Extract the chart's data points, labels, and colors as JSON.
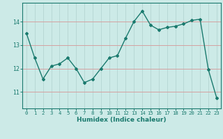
{
  "xlabel": "Humidex (Indice chaleur)",
  "x": [
    0,
    1,
    2,
    3,
    4,
    5,
    6,
    7,
    8,
    9,
    10,
    11,
    12,
    13,
    14,
    15,
    16,
    17,
    18,
    19,
    20,
    21,
    22,
    23
  ],
  "y": [
    13.5,
    12.45,
    11.55,
    12.1,
    12.2,
    12.45,
    12.0,
    11.4,
    11.55,
    12.0,
    12.45,
    12.55,
    13.3,
    14.0,
    14.45,
    13.85,
    13.65,
    13.75,
    13.8,
    13.9,
    14.05,
    14.1,
    11.95,
    10.75
  ],
  "line_color": "#1a7a6e",
  "bg_color": "#cceae7",
  "grid_color": "#b8d8d5",
  "tick_color": "#1a7a6e",
  "label_color": "#1a7a6e",
  "yticks": [
    11,
    12,
    13,
    14
  ],
  "ylim": [
    10.3,
    14.8
  ],
  "xlim": [
    -0.5,
    23.5
  ],
  "marker": "D",
  "markersize": 2.0,
  "linewidth": 1.0,
  "tick_fontsize": 5.2,
  "label_fontsize": 6.5
}
